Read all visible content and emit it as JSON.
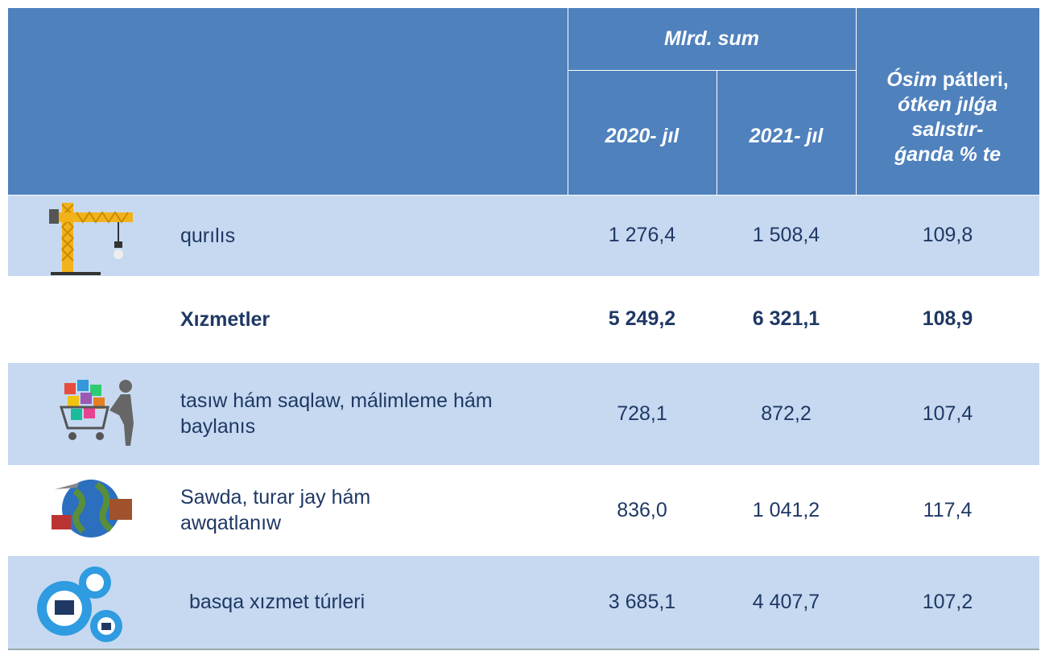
{
  "header": {
    "unit": "Mlrd. sum",
    "col_2020": "2020- jıl",
    "col_2021": "2021- jıl",
    "growth": {
      "italic_word": "Ósim",
      "rest_first_line": " pátleri,",
      "line2": "ótken jılǵa",
      "line3": "salıstır-",
      "line4": "ǵanda % te"
    }
  },
  "rows": [
    {
      "label": "qurılıs",
      "v2020": "1 276,4",
      "v2021": "1 508,4",
      "growth": "109,8",
      "bold": false
    },
    {
      "label": "Xızmetler",
      "v2020": "5 249,2",
      "v2021": "6 321,1",
      "growth": "108,9",
      "bold": true
    },
    {
      "label": "tasıw hám saqlaw, málimleme hám baylanıs",
      "v2020": "728,1",
      "v2021": "872,2",
      "growth": "107,4",
      "bold": false
    },
    {
      "label": "Sawda, turar jay hám awqatlanıw",
      "v2020": "836,0",
      "v2021": "1 041,2",
      "growth": "117,4",
      "bold": false
    },
    {
      "label": "basqa xızmet túrleri",
      "v2020": "3 685,1",
      "v2021": "4 407,7",
      "growth": "107,2",
      "bold": false
    }
  ]
}
